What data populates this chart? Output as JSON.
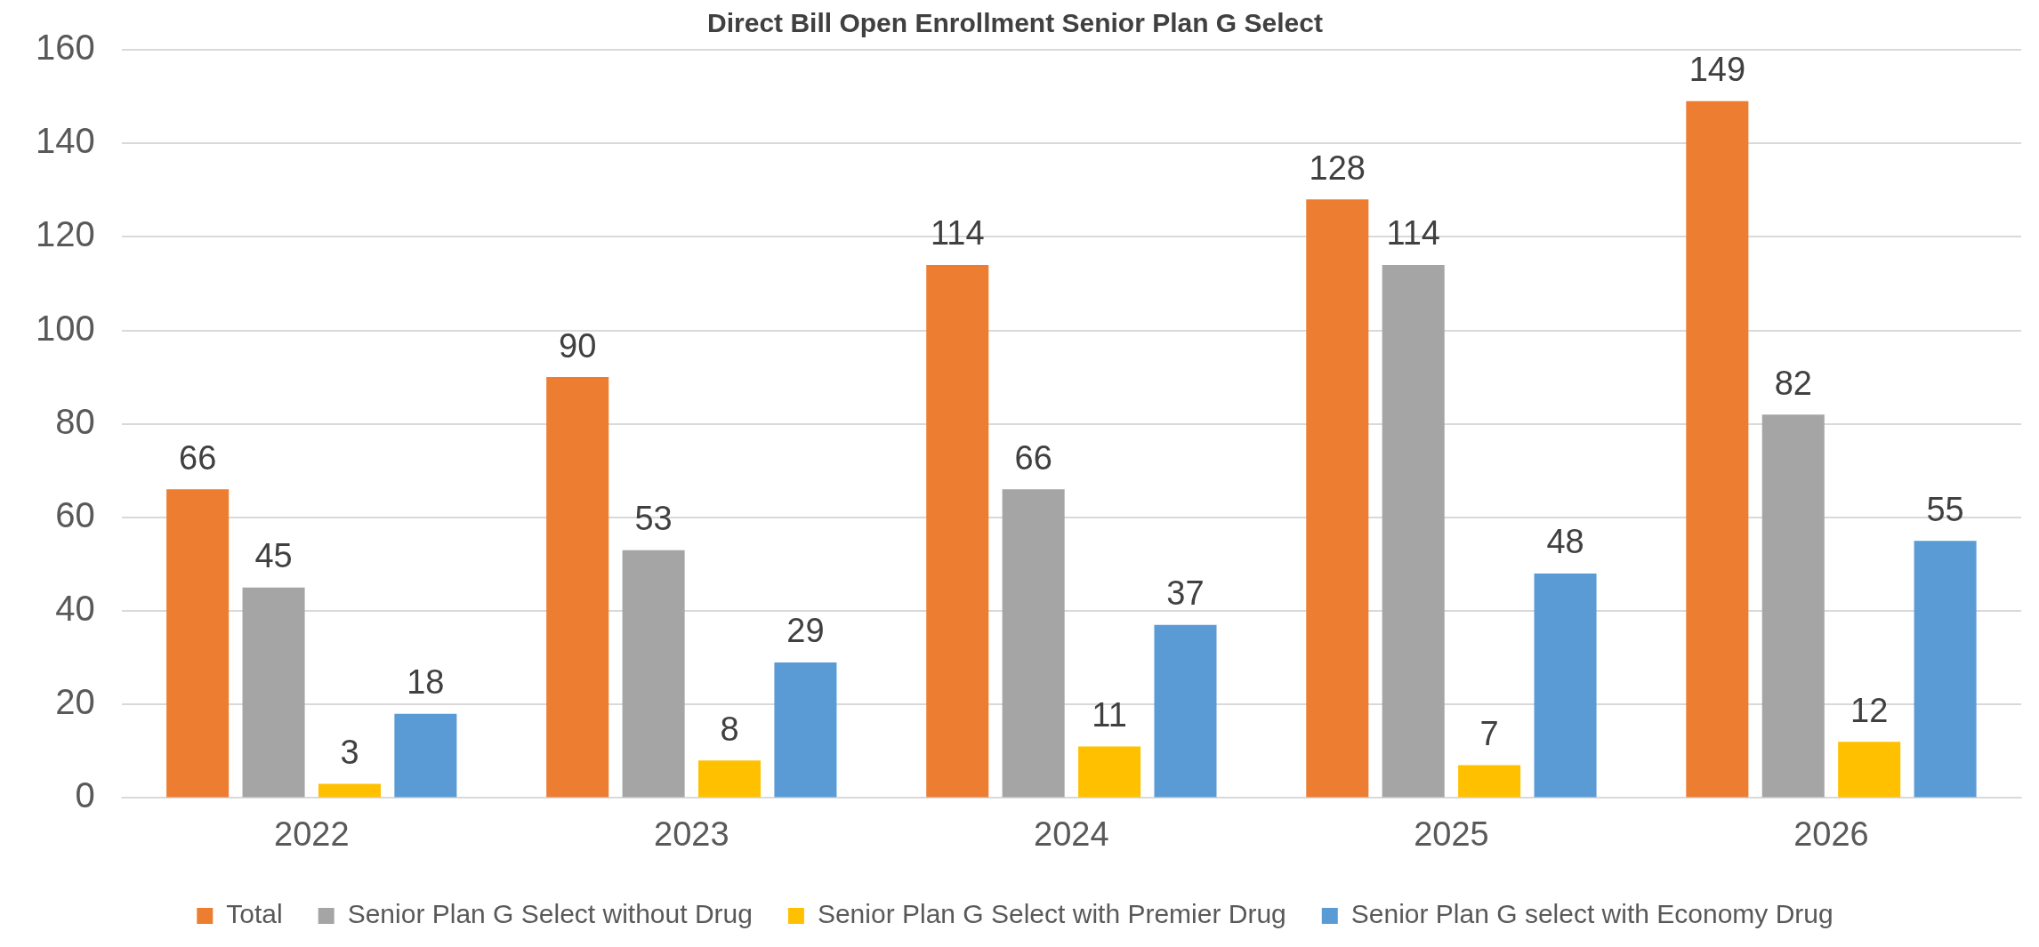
{
  "chart_data": {
    "type": "bar",
    "title": "Direct Bill Open Enrollment Senior Plan G Select",
    "categories": [
      "2022",
      "2023",
      "2024",
      "2025",
      "2026"
    ],
    "series": [
      {
        "name": "Total",
        "color": "#ed7d31",
        "values": [
          66,
          90,
          114,
          128,
          149
        ]
      },
      {
        "name": "Senior Plan G Select without Drug",
        "color": "#a5a5a5",
        "values": [
          45,
          53,
          66,
          114,
          82
        ]
      },
      {
        "name": "Senior Plan G Select with Premier Drug",
        "color": "#ffc000",
        "values": [
          3,
          8,
          11,
          7,
          12
        ]
      },
      {
        "name": "Senior Plan G select with Economy Drug",
        "color": "#5b9bd5",
        "values": [
          18,
          29,
          37,
          48,
          55
        ]
      }
    ],
    "ylim": [
      0,
      160
    ],
    "yticks": [
      0,
      20,
      40,
      60,
      80,
      100,
      120,
      140,
      160
    ],
    "grid": "y",
    "legend": "bottom",
    "data_labels": true
  }
}
